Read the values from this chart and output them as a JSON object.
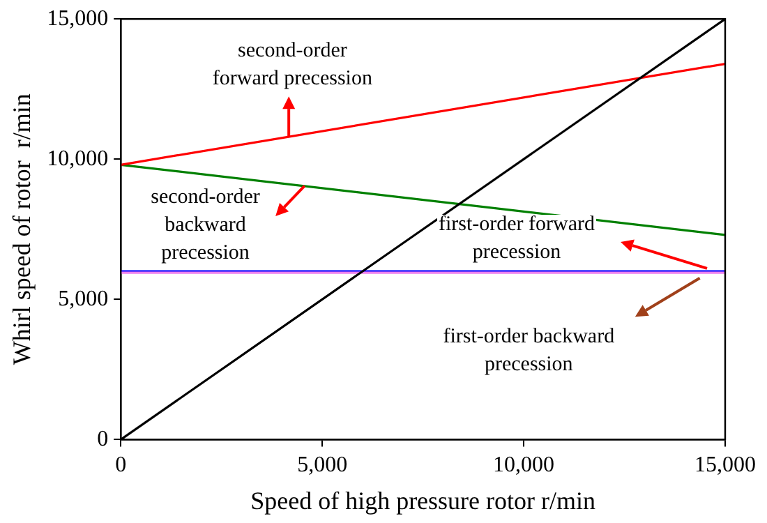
{
  "chart_data": {
    "type": "line",
    "xlabel": "Speed of high pressure rotor r/min",
    "ylabel": "Whirl speed of rotor  r/min",
    "x": [
      0,
      15000
    ],
    "xlim": [
      0,
      15000
    ],
    "ylim": [
      0,
      15000
    ],
    "xticks": [
      0,
      {
        "value": 5000,
        "label": "5,000"
      },
      {
        "value": 10000,
        "label": "10,000"
      },
      {
        "value": 15000,
        "label": "15,000"
      }
    ],
    "yticks": [
      0,
      {
        "value": 5000,
        "label": "5,000"
      },
      {
        "value": 10000,
        "label": "10,000"
      },
      {
        "value": 15000,
        "label": "15,000"
      }
    ],
    "grid": false,
    "legend": false,
    "marker": "none",
    "line_style": "solid",
    "series": [
      {
        "color": "#000000",
        "values": [
          0,
          15000
        ]
      },
      {
        "color": "#ff0000",
        "values": [
          9800,
          13400
        ]
      },
      {
        "color": "#008000",
        "values": [
          9800,
          7300
        ]
      },
      {
        "color": "#ee82ee",
        "values": [
          5950,
          5950
        ]
      },
      {
        "color": "#0000ff",
        "values": [
          6000,
          6000
        ]
      }
    ],
    "annotations": [
      "second-order\nforward precession",
      "second-order\nbackward\nprecession",
      "first-order forward\nprecession",
      "first-order backward\nprecession"
    ]
  }
}
